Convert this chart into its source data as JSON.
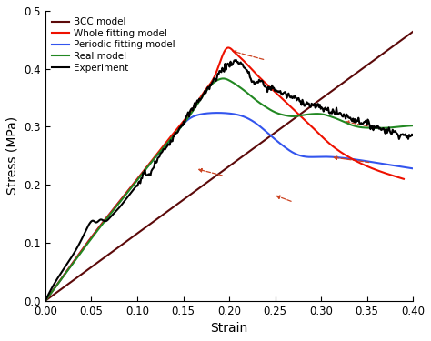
{
  "xlabel": "Strain",
  "ylabel": "Stress (MPa)",
  "xlim": [
    0.0,
    0.4
  ],
  "ylim": [
    0.0,
    0.5
  ],
  "xticks": [
    0.0,
    0.05,
    0.1,
    0.15,
    0.2,
    0.25,
    0.3,
    0.35,
    0.4
  ],
  "yticks": [
    0.0,
    0.1,
    0.2,
    0.3,
    0.4,
    0.5
  ],
  "legend": [
    {
      "label": "BCC model",
      "color": "#5C0A0A"
    },
    {
      "label": "Whole fitting model",
      "color": "#EE1100"
    },
    {
      "label": "Periodic fitting model",
      "color": "#3355EE"
    },
    {
      "label": "Real model",
      "color": "#228822"
    },
    {
      "label": "Experiment",
      "color": "#000000"
    }
  ],
  "bcc_pts": [
    [
      0.0,
      0.0
    ],
    [
      0.05,
      0.058
    ],
    [
      0.1,
      0.116
    ],
    [
      0.15,
      0.174
    ],
    [
      0.2,
      0.232
    ],
    [
      0.25,
      0.29
    ],
    [
      0.3,
      0.348
    ],
    [
      0.35,
      0.406
    ],
    [
      0.4,
      0.464
    ]
  ],
  "whole_pts": [
    [
      0.0,
      0.0
    ],
    [
      0.02,
      0.044
    ],
    [
      0.04,
      0.088
    ],
    [
      0.06,
      0.13
    ],
    [
      0.08,
      0.17
    ],
    [
      0.1,
      0.21
    ],
    [
      0.12,
      0.25
    ],
    [
      0.14,
      0.29
    ],
    [
      0.16,
      0.33
    ],
    [
      0.175,
      0.365
    ],
    [
      0.185,
      0.39
    ],
    [
      0.192,
      0.42
    ],
    [
      0.197,
      0.435
    ],
    [
      0.205,
      0.43
    ],
    [
      0.215,
      0.415
    ],
    [
      0.23,
      0.39
    ],
    [
      0.25,
      0.36
    ],
    [
      0.27,
      0.33
    ],
    [
      0.29,
      0.3
    ],
    [
      0.31,
      0.27
    ],
    [
      0.33,
      0.248
    ],
    [
      0.35,
      0.232
    ],
    [
      0.37,
      0.22
    ],
    [
      0.39,
      0.21
    ]
  ],
  "periodic_pts": [
    [
      0.0,
      0.0
    ],
    [
      0.02,
      0.044
    ],
    [
      0.04,
      0.088
    ],
    [
      0.06,
      0.13
    ],
    [
      0.08,
      0.17
    ],
    [
      0.1,
      0.21
    ],
    [
      0.12,
      0.248
    ],
    [
      0.135,
      0.275
    ],
    [
      0.145,
      0.295
    ],
    [
      0.155,
      0.312
    ],
    [
      0.165,
      0.32
    ],
    [
      0.175,
      0.323
    ],
    [
      0.185,
      0.324
    ],
    [
      0.2,
      0.323
    ],
    [
      0.215,
      0.318
    ],
    [
      0.23,
      0.305
    ],
    [
      0.245,
      0.285
    ],
    [
      0.258,
      0.268
    ],
    [
      0.27,
      0.255
    ],
    [
      0.285,
      0.248
    ],
    [
      0.295,
      0.248
    ],
    [
      0.31,
      0.248
    ],
    [
      0.325,
      0.246
    ],
    [
      0.34,
      0.243
    ],
    [
      0.36,
      0.238
    ],
    [
      0.38,
      0.233
    ],
    [
      0.4,
      0.228
    ]
  ],
  "real_pts": [
    [
      0.0,
      0.0
    ],
    [
      0.02,
      0.043
    ],
    [
      0.04,
      0.086
    ],
    [
      0.06,
      0.128
    ],
    [
      0.08,
      0.168
    ],
    [
      0.1,
      0.208
    ],
    [
      0.12,
      0.248
    ],
    [
      0.14,
      0.285
    ],
    [
      0.155,
      0.315
    ],
    [
      0.165,
      0.338
    ],
    [
      0.172,
      0.355
    ],
    [
      0.178,
      0.368
    ],
    [
      0.183,
      0.376
    ],
    [
      0.188,
      0.381
    ],
    [
      0.195,
      0.383
    ],
    [
      0.2,
      0.38
    ],
    [
      0.21,
      0.37
    ],
    [
      0.22,
      0.358
    ],
    [
      0.23,
      0.345
    ],
    [
      0.24,
      0.334
    ],
    [
      0.25,
      0.325
    ],
    [
      0.26,
      0.32
    ],
    [
      0.27,
      0.318
    ],
    [
      0.28,
      0.32
    ],
    [
      0.29,
      0.322
    ],
    [
      0.3,
      0.322
    ],
    [
      0.31,
      0.318
    ],
    [
      0.32,
      0.312
    ],
    [
      0.33,
      0.305
    ],
    [
      0.34,
      0.3
    ],
    [
      0.355,
      0.298
    ],
    [
      0.37,
      0.298
    ],
    [
      0.385,
      0.3
    ],
    [
      0.4,
      0.302
    ]
  ],
  "exp_pts": [
    [
      0.0,
      0.0
    ],
    [
      0.02,
      0.055
    ],
    [
      0.04,
      0.108
    ],
    [
      0.048,
      0.133
    ],
    [
      0.052,
      0.138
    ],
    [
      0.055,
      0.135
    ],
    [
      0.06,
      0.14
    ],
    [
      0.065,
      0.137
    ],
    [
      0.07,
      0.143
    ],
    [
      0.08,
      0.16
    ],
    [
      0.09,
      0.18
    ],
    [
      0.1,
      0.2
    ],
    [
      0.105,
      0.212
    ],
    [
      0.108,
      0.22
    ],
    [
      0.112,
      0.215
    ],
    [
      0.115,
      0.222
    ],
    [
      0.12,
      0.238
    ],
    [
      0.13,
      0.262
    ],
    [
      0.14,
      0.285
    ],
    [
      0.15,
      0.308
    ],
    [
      0.16,
      0.33
    ],
    [
      0.17,
      0.352
    ],
    [
      0.18,
      0.372
    ],
    [
      0.188,
      0.39
    ],
    [
      0.195,
      0.402
    ],
    [
      0.2,
      0.408
    ],
    [
      0.205,
      0.412
    ],
    [
      0.208,
      0.413
    ],
    [
      0.212,
      0.41
    ],
    [
      0.218,
      0.4
    ],
    [
      0.223,
      0.385
    ],
    [
      0.228,
      0.375
    ],
    [
      0.232,
      0.378
    ],
    [
      0.238,
      0.372
    ],
    [
      0.243,
      0.365
    ],
    [
      0.248,
      0.368
    ],
    [
      0.252,
      0.362
    ],
    [
      0.258,
      0.358
    ],
    [
      0.265,
      0.353
    ],
    [
      0.27,
      0.35
    ],
    [
      0.278,
      0.345
    ],
    [
      0.285,
      0.34
    ],
    [
      0.295,
      0.335
    ],
    [
      0.305,
      0.33
    ],
    [
      0.315,
      0.325
    ],
    [
      0.325,
      0.32
    ],
    [
      0.335,
      0.313
    ],
    [
      0.345,
      0.308
    ],
    [
      0.355,
      0.302
    ],
    [
      0.37,
      0.295
    ],
    [
      0.385,
      0.288
    ],
    [
      0.4,
      0.282
    ]
  ],
  "background_color": "#ffffff"
}
